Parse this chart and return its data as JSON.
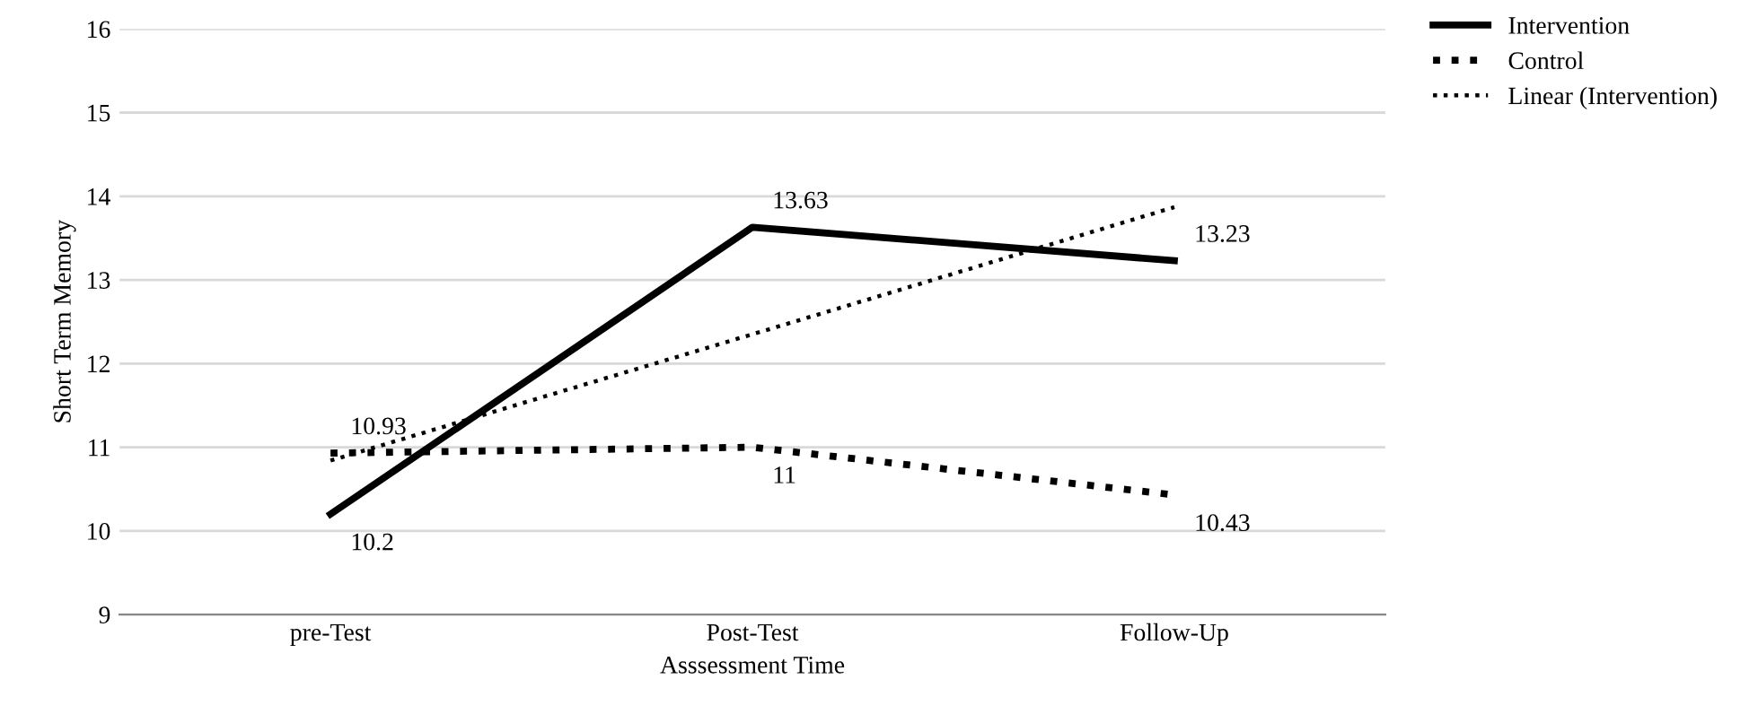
{
  "chart_data": {
    "type": "line",
    "xlabel": "Asssessment Time",
    "ylabel": "Short Term Memory",
    "categories": [
      "pre-Test",
      "Post-Test",
      "Follow-Up"
    ],
    "series": [
      {
        "name": "Intervention",
        "color": "#000000",
        "values": [
          10.2,
          13.63,
          13.23
        ],
        "value_labels": [
          "10.2",
          "13.63",
          "13.23"
        ],
        "line_style": "solid"
      },
      {
        "name": "Control",
        "color": "#000000",
        "values": [
          10.93,
          11,
          10.43
        ],
        "value_labels": [
          "10.93",
          "11",
          "10.43"
        ],
        "line_style": "dotted"
      },
      {
        "name": "Linear (Intervention)",
        "color": "#000000",
        "values": [
          10.84,
          12.35,
          13.87
        ],
        "line_style": "dotted"
      }
    ],
    "ylim": [
      9,
      16
    ],
    "yticks": [
      9,
      10,
      11,
      12,
      13,
      14,
      15,
      16
    ],
    "grid": "y",
    "legend": "top right",
    "marker": "none"
  }
}
